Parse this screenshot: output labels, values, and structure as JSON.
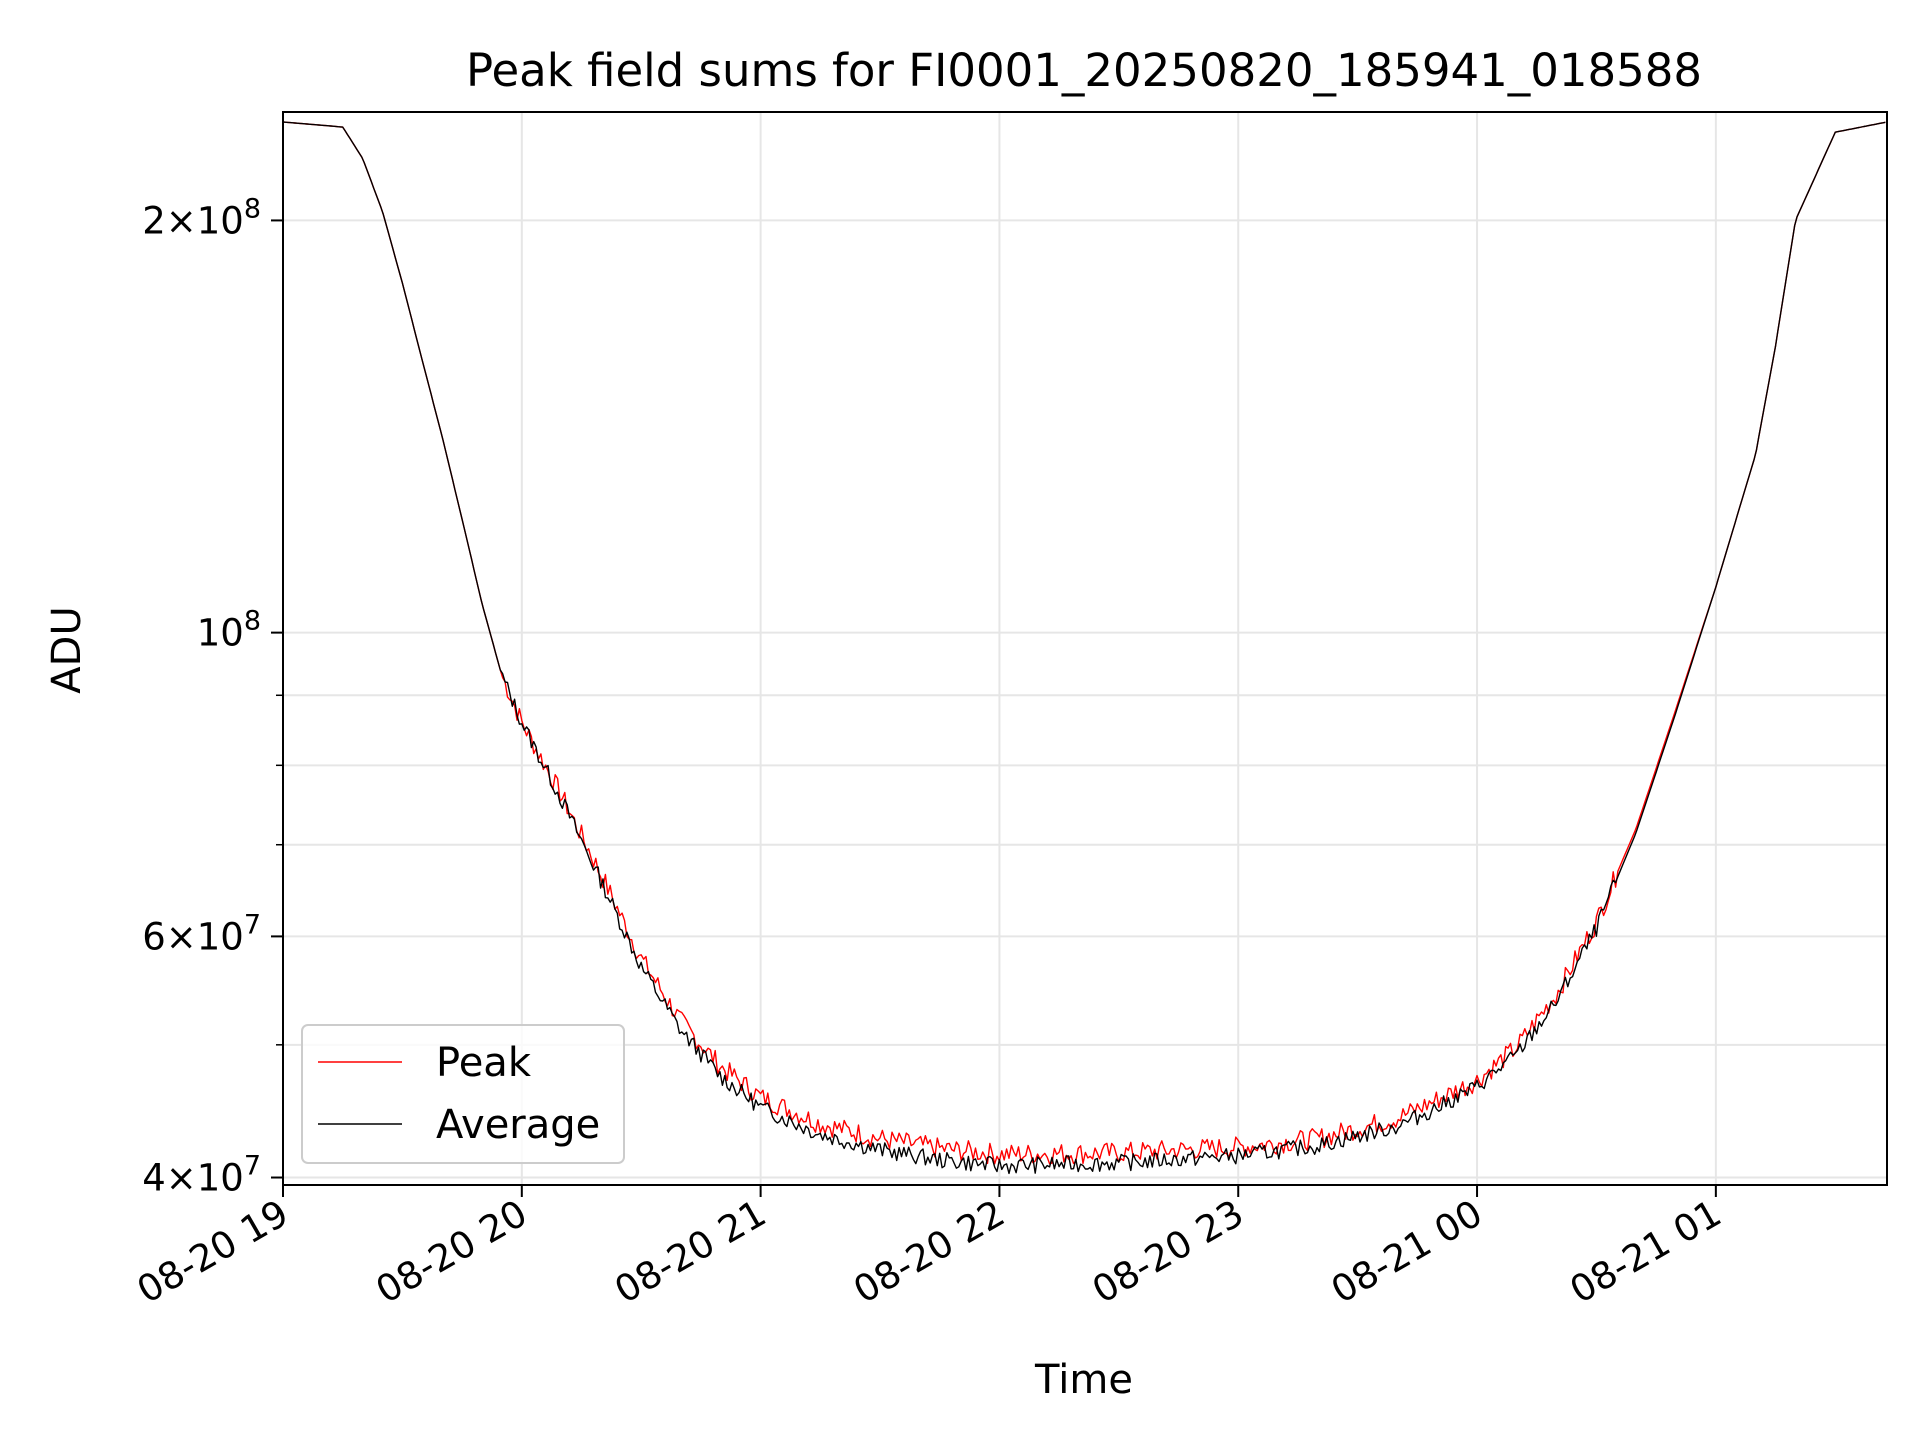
{
  "chart_data": {
    "type": "line",
    "title": "Peak field sums for FI0001_20250820_185941_018588",
    "xlabel": "Time",
    "ylabel": "ADU",
    "yscale": "log",
    "xlim": [
      "2025-08-20 19:00",
      "2025-08-21 01:43"
    ],
    "ylim": [
      39500000,
      240000000
    ],
    "grid": true,
    "legend_position": "lower-left",
    "x_ticks": [
      {
        "time": "2025-08-20 19:00",
        "label": "08-20 19"
      },
      {
        "time": "2025-08-20 20:00",
        "label": "08-20 20"
      },
      {
        "time": "2025-08-20 21:00",
        "label": "08-20 21"
      },
      {
        "time": "2025-08-20 22:00",
        "label": "08-20 22"
      },
      {
        "time": "2025-08-20 23:00",
        "label": "08-20 23"
      },
      {
        "time": "2025-08-21 00:00",
        "label": "08-21 00"
      },
      {
        "time": "2025-08-21 01:00",
        "label": "08-21 01"
      }
    ],
    "y_ticks": [
      {
        "value": 40000000,
        "base": "4",
        "exp": "7"
      },
      {
        "value": 60000000,
        "base": "6",
        "exp": "7"
      },
      {
        "value": 100000000,
        "base": "10",
        "exp": "8"
      },
      {
        "value": 200000000,
        "base": "2",
        "exp": "8"
      }
    ],
    "y_minor_ticks": [
      50000000,
      70000000,
      80000000,
      90000000
    ],
    "series": [
      {
        "name": "Peak",
        "color": "#ff0000",
        "line_width": 1,
        "x": [
          "2025-08-20 19:00",
          "2025-08-20 19:15",
          "2025-08-20 19:20",
          "2025-08-20 19:25",
          "2025-08-20 19:30",
          "2025-08-20 19:35",
          "2025-08-20 19:40",
          "2025-08-20 19:45",
          "2025-08-20 19:50",
          "2025-08-20 19:55",
          "2025-08-20 20:00",
          "2025-08-20 20:10",
          "2025-08-20 20:20",
          "2025-08-20 20:30",
          "2025-08-20 20:40",
          "2025-08-20 20:50",
          "2025-08-20 21:00",
          "2025-08-20 21:15",
          "2025-08-20 21:30",
          "2025-08-20 21:45",
          "2025-08-20 22:00",
          "2025-08-20 22:30",
          "2025-08-20 23:00",
          "2025-08-20 23:20",
          "2025-08-20 23:40",
          "2025-08-20 23:50",
          "2025-08-21 00:00",
          "2025-08-21 00:10",
          "2025-08-21 00:20",
          "2025-08-21 00:30",
          "2025-08-21 00:40",
          "2025-08-21 00:50",
          "2025-08-21 01:00",
          "2025-08-21 01:10",
          "2025-08-21 01:15",
          "2025-08-21 01:20",
          "2025-08-21 01:30",
          "2025-08-21 01:43"
        ],
        "values": [
          236000000,
          234000000,
          222000000,
          203000000,
          180000000,
          158000000,
          139000000,
          121000000,
          105000000,
          93000000,
          86000000,
          76000000,
          66500000,
          57800000,
          52000000,
          48200000,
          45800000,
          43800000,
          42700000,
          42000000,
          41600000,
          41700000,
          42100000,
          42700000,
          44200000,
          45600000,
          47100000,
          49800000,
          54500000,
          61500000,
          72000000,
          88000000,
          108000000,
          135000000,
          162000000,
          200000000,
          232000000,
          236000000
        ]
      },
      {
        "name": "Average",
        "color": "#000000",
        "line_width": 1,
        "x": [
          "2025-08-20 19:00",
          "2025-08-20 19:15",
          "2025-08-20 19:20",
          "2025-08-20 19:25",
          "2025-08-20 19:30",
          "2025-08-20 19:35",
          "2025-08-20 19:40",
          "2025-08-20 19:45",
          "2025-08-20 19:50",
          "2025-08-20 19:55",
          "2025-08-20 20:00",
          "2025-08-20 20:10",
          "2025-08-20 20:20",
          "2025-08-20 20:30",
          "2025-08-20 20:40",
          "2025-08-20 20:50",
          "2025-08-20 21:00",
          "2025-08-20 21:15",
          "2025-08-20 21:30",
          "2025-08-20 21:45",
          "2025-08-20 22:00",
          "2025-08-20 22:30",
          "2025-08-20 23:00",
          "2025-08-20 23:20",
          "2025-08-20 23:40",
          "2025-08-20 23:50",
          "2025-08-21 00:00",
          "2025-08-21 00:10",
          "2025-08-21 00:20",
          "2025-08-21 00:30",
          "2025-08-21 00:40",
          "2025-08-21 00:50",
          "2025-08-21 01:00",
          "2025-08-21 01:10",
          "2025-08-21 01:15",
          "2025-08-21 01:20",
          "2025-08-21 01:30",
          "2025-08-21 01:43"
        ],
        "values": [
          236000000,
          234000000,
          222000000,
          203000000,
          180000000,
          158000000,
          139000000,
          121000000,
          105000000,
          93000000,
          86000000,
          75500000,
          65800000,
          57000000,
          51200000,
          47400000,
          45000000,
          43000000,
          41900000,
          41200000,
          40800000,
          41000000,
          41500000,
          42200000,
          43600000,
          45000000,
          46600000,
          49200000,
          53800000,
          60800000,
          71500000,
          87500000,
          108000000,
          135000000,
          162000000,
          200000000,
          232000000,
          236000000
        ]
      }
    ]
  }
}
